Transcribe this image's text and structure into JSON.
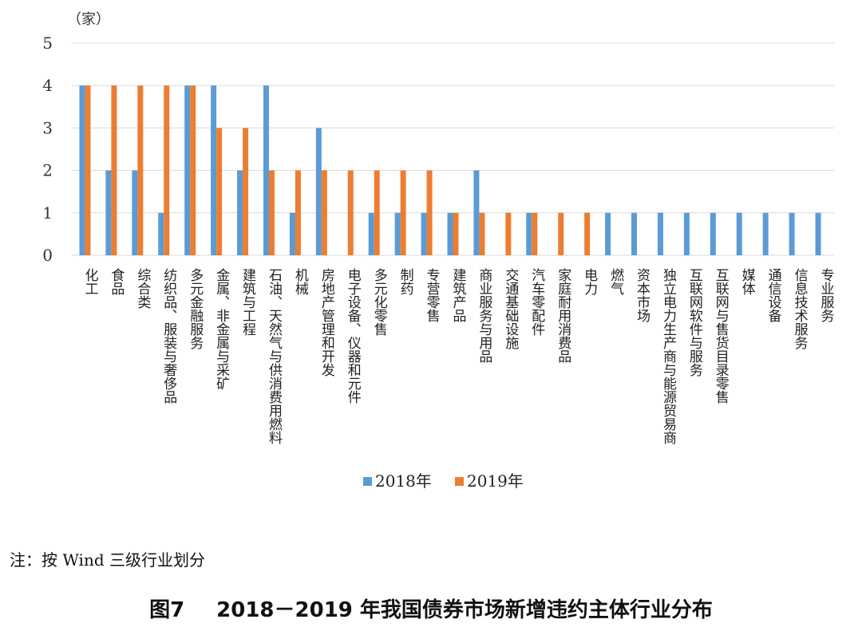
{
  "chart_data": {
    "type": "bar",
    "unit_label": "（家）",
    "ylim": [
      0,
      5
    ],
    "yticks": [
      "0",
      "1",
      "2",
      "3",
      "4",
      "5"
    ],
    "grid": true,
    "legend_position": "bottom-center",
    "categories": [
      "化工",
      "食品",
      "综合类",
      "纺织品、服装与奢侈品",
      "多元金融服务",
      "金属、非金属与采矿",
      "建筑与工程",
      "石油、天然气与供消费用燃料",
      "机械",
      "房地产管理和开发",
      "电子设备、仪器和元件",
      "多元化零售",
      "制药",
      "专营零售",
      "建筑产品",
      "商业服务与用品",
      "交通基础设施",
      "汽车零配件",
      "家庭耐用消费品",
      "电力",
      "燃气",
      "资本市场",
      "独立电力生产商与能源贸易商",
      "互联网软件与服务",
      "互联网与售货目录零售",
      "媒体",
      "通信设备",
      "信息技术服务",
      "专业服务"
    ],
    "series": [
      {
        "name": "2018年",
        "color": "#5B9BD5",
        "values": [
          4,
          2,
          2,
          1,
          4,
          4,
          2,
          4,
          1,
          3,
          0,
          1,
          1,
          1,
          1,
          2,
          0,
          1,
          0,
          0,
          1,
          1,
          1,
          1,
          1,
          1,
          1,
          1,
          1
        ]
      },
      {
        "name": "2019年",
        "color": "#ED7D31",
        "values": [
          4,
          4,
          4,
          4,
          4,
          3,
          3,
          2,
          2,
          2,
          2,
          2,
          2,
          2,
          1,
          1,
          1,
          1,
          1,
          1,
          0,
          0,
          0,
          0,
          0,
          0,
          0,
          0,
          0
        ]
      }
    ]
  },
  "note": "注：按 Wind 三级行业划分",
  "figure": {
    "label": "图7",
    "caption": "2018－2019 年我国债券市场新增违约主体行业分布"
  }
}
